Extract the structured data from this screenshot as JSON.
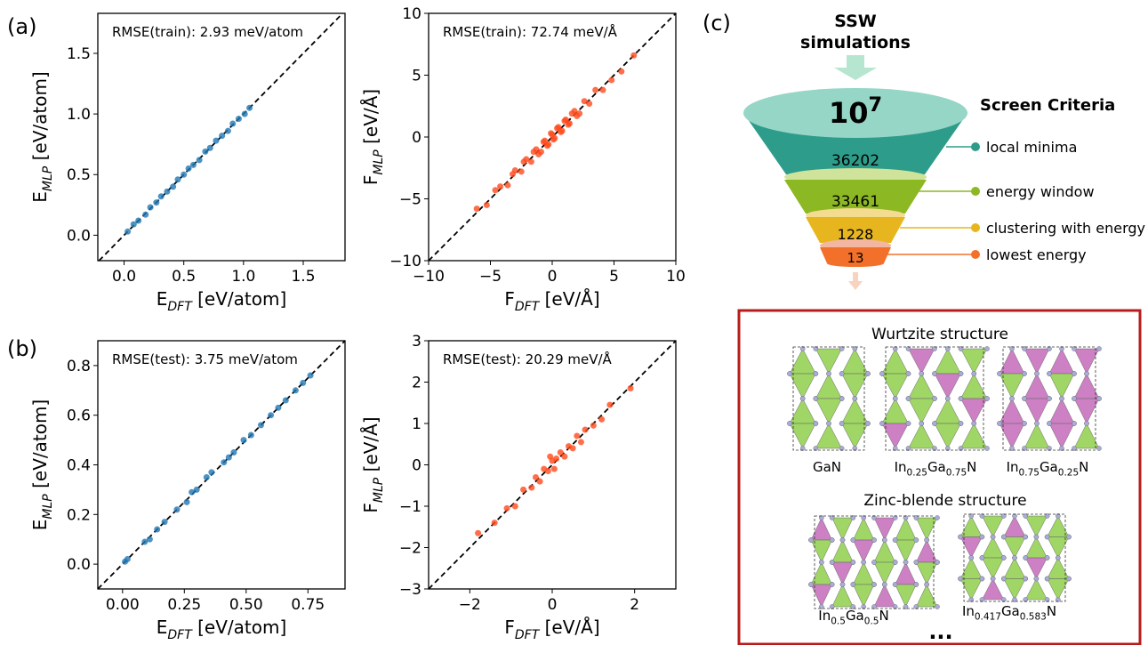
{
  "panel_labels": [
    "(a)",
    "(b)",
    "(c)"
  ],
  "chart_data": [
    {
      "type": "scatter",
      "annotation": "RMSE(train): 2.93 meV/atom",
      "xlabel": [
        "E",
        "DFT",
        " [eV/atom]"
      ],
      "ylabel": [
        "E",
        "MLP",
        " [eV/atom]"
      ],
      "xlim": [
        -0.22,
        1.85
      ],
      "ylim": [
        -0.21,
        1.83
      ],
      "xticks": [
        {
          "value": 0,
          "label": "0.0"
        },
        0.5,
        {
          "value": 1,
          "label": "1.0"
        },
        1.5
      ],
      "yticks": [
        {
          "value": 0,
          "label": "0.0"
        },
        0.5,
        {
          "value": 1,
          "label": "1.0"
        },
        1.5
      ],
      "diagonal": true,
      "series": [
        {
          "color": "#1f77b4",
          "x": [
            0.03,
            0.08,
            0.12,
            0.18,
            0.22,
            0.27,
            0.31,
            0.36,
            0.41,
            0.45,
            0.5,
            0.54,
            0.58,
            0.63,
            0.68,
            0.72,
            0.77,
            0.82,
            0.87,
            0.91,
            0.96,
            1.01,
            1.05
          ],
          "values": [
            0.03,
            0.09,
            0.12,
            0.17,
            0.23,
            0.27,
            0.32,
            0.36,
            0.4,
            0.46,
            0.5,
            0.55,
            0.58,
            0.62,
            0.69,
            0.72,
            0.78,
            0.82,
            0.86,
            0.92,
            0.96,
            1.0,
            1.05
          ]
        }
      ]
    },
    {
      "type": "scatter",
      "annotation": "RMSE(train): 72.74 meV/Å",
      "xlabel": [
        "F",
        "DFT",
        " [eV/Å]"
      ],
      "ylabel": [
        "F",
        "MLP",
        " [eV/Å]"
      ],
      "xlim": [
        -10,
        10
      ],
      "ylim": [
        -10,
        10
      ],
      "xticks": [
        {
          "value": -10,
          "label": "−10"
        },
        {
          "value": -5,
          "label": "−5"
        },
        0,
        5,
        10
      ],
      "yticks": [
        {
          "value": -10,
          "label": "−10"
        },
        {
          "value": -5,
          "label": "−5"
        },
        0,
        5,
        10
      ],
      "diagonal": true,
      "series": [
        {
          "color": "#ff4a1c",
          "x": [
            -6.1,
            -5.3,
            -4.6,
            -4.2,
            -3.6,
            -3.2,
            -3.0,
            -2.5,
            -2.3,
            -2.1,
            -1.7,
            -1.5,
            -1.3,
            -1.1,
            -0.9,
            -0.7,
            -0.6,
            -0.4,
            -0.3,
            -0.1,
            0,
            0.1,
            0.2,
            0.4,
            0.5,
            0.7,
            0.8,
            1.0,
            1.1,
            1.3,
            1.4,
            1.6,
            1.8,
            2.0,
            2.2,
            2.6,
            3.0,
            3.5,
            4.1,
            4.8,
            5.6,
            6.6
          ],
          "values": [
            -5.8,
            -5.5,
            -4.3,
            -4.0,
            -3.9,
            -3.0,
            -2.7,
            -2.8,
            -2.0,
            -1.8,
            -2.0,
            -1.2,
            -1.0,
            -1.4,
            -1.2,
            -0.4,
            -0.3,
            -0.7,
            -0.6,
            0.3,
            0.2,
            -0.2,
            -0.1,
            0.7,
            0.8,
            0.4,
            0.5,
            1.3,
            1.4,
            1.0,
            1.1,
            1.9,
            2.1,
            1.7,
            1.9,
            2.9,
            2.7,
            3.8,
            3.8,
            4.6,
            5.3,
            6.6
          ]
        }
      ]
    },
    {
      "type": "scatter",
      "annotation": "RMSE(test): 3.75 meV/atom",
      "xlabel": [
        "E",
        "DFT",
        " [eV/atom]"
      ],
      "ylabel": [
        "E",
        "MLP",
        " [eV/atom]"
      ],
      "xlim": [
        -0.1,
        0.9
      ],
      "ylim": [
        -0.1,
        0.9
      ],
      "xticks": [
        {
          "value": 0,
          "label": "0.00"
        },
        0.25,
        {
          "value": 0.5,
          "label": "0.50"
        },
        0.75
      ],
      "yticks": [
        {
          "value": 0,
          "label": "0.0"
        },
        0.2,
        0.4,
        0.6,
        0.8
      ],
      "diagonal": true,
      "series": [
        {
          "color": "#1f77b4",
          "x": [
            0.01,
            0.02,
            0.09,
            0.11,
            0.14,
            0.17,
            0.22,
            0.26,
            0.28,
            0.3,
            0.34,
            0.36,
            0.41,
            0.43,
            0.45,
            0.49,
            0.52,
            0.56,
            0.6,
            0.63,
            0.66,
            0.7,
            0.73,
            0.76
          ],
          "values": [
            0.01,
            0.02,
            0.09,
            0.1,
            0.14,
            0.17,
            0.22,
            0.25,
            0.29,
            0.3,
            0.35,
            0.37,
            0.41,
            0.43,
            0.45,
            0.5,
            0.52,
            0.56,
            0.6,
            0.63,
            0.66,
            0.7,
            0.73,
            0.76
          ]
        }
      ]
    },
    {
      "type": "scatter",
      "annotation": "RMSE(test): 20.29 meV/Å",
      "xlabel": [
        "F",
        "DFT",
        " [eV/Å]"
      ],
      "ylabel": [
        "F",
        "MLP",
        " [eV/Å]"
      ],
      "xlim": [
        -3,
        3
      ],
      "ylim": [
        -3,
        3
      ],
      "xticks": [
        {
          "value": -2,
          "label": "−2"
        },
        0,
        2
      ],
      "yticks": [
        {
          "value": -3,
          "label": "−3"
        },
        {
          "value": -2,
          "label": "−2"
        },
        {
          "value": -1,
          "label": "−1"
        },
        0,
        1,
        2,
        3
      ],
      "diagonal": true,
      "series": [
        {
          "color": "#ff4a1c",
          "x": [
            -1.8,
            -1.4,
            -1.1,
            -0.9,
            -0.7,
            -0.5,
            -0.4,
            -0.3,
            -0.2,
            -0.1,
            -0.05,
            0,
            0.05,
            0.1,
            0.2,
            0.3,
            0.4,
            0.5,
            0.6,
            0.7,
            0.8,
            1.0,
            1.2,
            1.4,
            1.9
          ],
          "values": [
            -1.65,
            -1.4,
            -1.05,
            -1.0,
            -0.6,
            -0.55,
            -0.3,
            -0.4,
            -0.1,
            -0.15,
            0.2,
            0.1,
            -0.1,
            0.15,
            0.3,
            0.2,
            0.45,
            0.4,
            0.7,
            0.55,
            0.85,
            0.95,
            1.1,
            1.45,
            1.85
          ]
        }
      ]
    }
  ],
  "funnel": {
    "source": [
      "SSW",
      "simulations"
    ],
    "total": [
      "10",
      "7"
    ],
    "criteria_title": "Screen Criteria",
    "levels": [
      {
        "count": 36202,
        "label": "local minima",
        "color": "#2e9c8a"
      },
      {
        "count": 33461,
        "label": "energy window",
        "color": "#8cb823"
      },
      {
        "count": 1228,
        "label": "clustering with energy",
        "color": "#e7b61f"
      },
      {
        "count": 13,
        "label": "lowest energy",
        "color": "#f2702a"
      }
    ]
  },
  "structures": {
    "groups": [
      {
        "title": "Wurtzite structure",
        "items": [
          [
            "GaN"
          ],
          [
            "In",
            "0.25",
            "Ga",
            "0.75",
            "N"
          ],
          [
            "In",
            "0.75",
            "Ga",
            "0.25",
            "N"
          ]
        ]
      },
      {
        "title": "Zinc-blende structure",
        "items": [
          [
            "In",
            "0.5",
            "Ga",
            "0.5",
            "N"
          ],
          [
            "In",
            "0.417",
            "Ga",
            "0.583",
            "N"
          ]
        ]
      }
    ],
    "more": "..."
  }
}
